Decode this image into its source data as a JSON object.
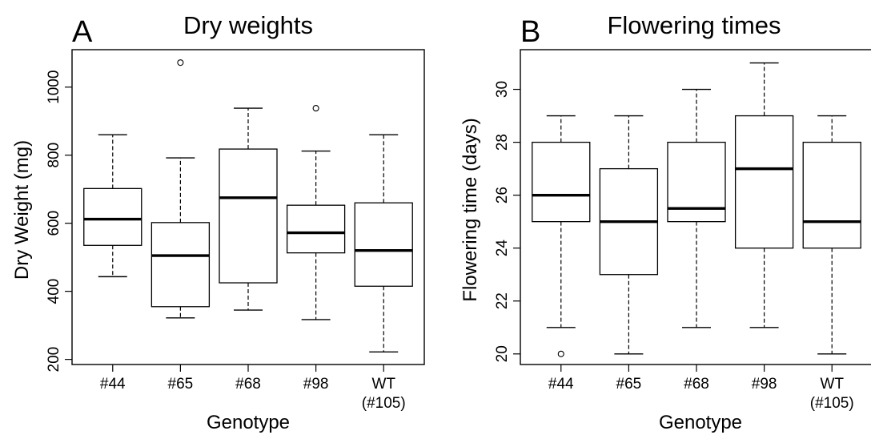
{
  "chart_data": [
    {
      "type": "box",
      "panel_label": "A",
      "title": "Dry weights",
      "xlabel": "Genotype",
      "ylabel": "Dry Weight (mg)",
      "ylim": [
        185,
        1110
      ],
      "yticks": [
        200,
        400,
        600,
        800,
        1000
      ],
      "categories": [
        {
          "lines": [
            "#44"
          ],
          "min": 443,
          "q1": 535,
          "median": 612,
          "q3": 702,
          "max": 860,
          "outliers": []
        },
        {
          "lines": [
            "#65"
          ],
          "min": 322,
          "q1": 355,
          "median": 505,
          "q3": 602,
          "max": 792,
          "outliers": [
            1072
          ]
        },
        {
          "lines": [
            "#68"
          ],
          "min": 345,
          "q1": 425,
          "median": 675,
          "q3": 818,
          "max": 938,
          "outliers": []
        },
        {
          "lines": [
            "#98"
          ],
          "min": 317,
          "q1": 513,
          "median": 572,
          "q3": 653,
          "max": 812,
          "outliers": [
            938
          ]
        },
        {
          "lines": [
            "WT",
            "(#105)"
          ],
          "min": 222,
          "q1": 415,
          "median": 520,
          "q3": 660,
          "max": 860,
          "outliers": []
        }
      ]
    },
    {
      "type": "box",
      "panel_label": "B",
      "title": "Flowering times",
      "xlabel": "Genotype",
      "ylabel": "Flowering time (days)",
      "ylim": [
        19.6,
        31.5
      ],
      "yticks": [
        20,
        22,
        24,
        26,
        28,
        30
      ],
      "categories": [
        {
          "lines": [
            "#44"
          ],
          "min": 21,
          "q1": 25,
          "median": 26,
          "q3": 28,
          "max": 29,
          "outliers": [
            20
          ]
        },
        {
          "lines": [
            "#65"
          ],
          "min": 20,
          "q1": 23,
          "median": 25,
          "q3": 27,
          "max": 29,
          "outliers": []
        },
        {
          "lines": [
            "#68"
          ],
          "min": 21,
          "q1": 25,
          "median": 25.5,
          "q3": 28,
          "max": 30,
          "outliers": []
        },
        {
          "lines": [
            "#98"
          ],
          "min": 21,
          "q1": 24,
          "median": 27,
          "q3": 29,
          "max": 31,
          "outliers": []
        },
        {
          "lines": [
            "WT",
            "(#105)"
          ],
          "min": 20,
          "q1": 24,
          "median": 25,
          "q3": 28,
          "max": 29,
          "outliers": []
        }
      ]
    }
  ]
}
